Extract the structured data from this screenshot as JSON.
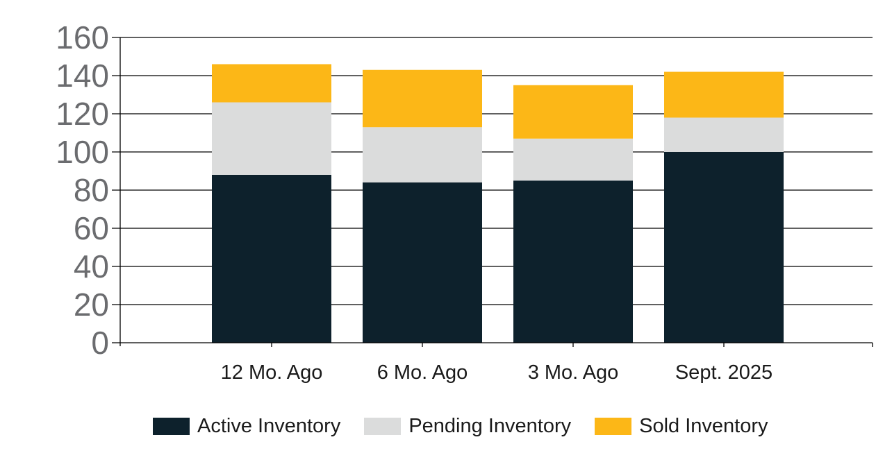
{
  "chart_data": {
    "type": "bar",
    "stacked": true,
    "title": "",
    "categories": [
      "12 Mo. Ago",
      "6 Mo. Ago",
      "3 Mo. Ago",
      "Sept. 2025"
    ],
    "series": [
      {
        "name": "Active Inventory",
        "color": "#0D212C",
        "values": [
          88,
          84,
          85,
          100
        ]
      },
      {
        "name": "Pending Inventory",
        "color": "#DBDCDC",
        "values": [
          38,
          29,
          22,
          18
        ]
      },
      {
        "name": "Sold Inventory",
        "color": "#FCB717",
        "values": [
          20,
          30,
          28,
          24
        ]
      }
    ],
    "stack_totals": [
      146,
      143,
      135,
      142
    ],
    "ylim": [
      0,
      160
    ],
    "ytick_step": 20,
    "ytick_labels": [
      "0",
      "20",
      "40",
      "60",
      "80",
      "100",
      "120",
      "140",
      "160"
    ],
    "grid": true,
    "legend_position": "bottom",
    "colors": {
      "background": "#FFFFFF",
      "axis_line": "#000000",
      "ytick_label": "#6B6C6F",
      "xtick_label": "#1A1A1A",
      "legend_label": "#1A1A1A"
    }
  }
}
